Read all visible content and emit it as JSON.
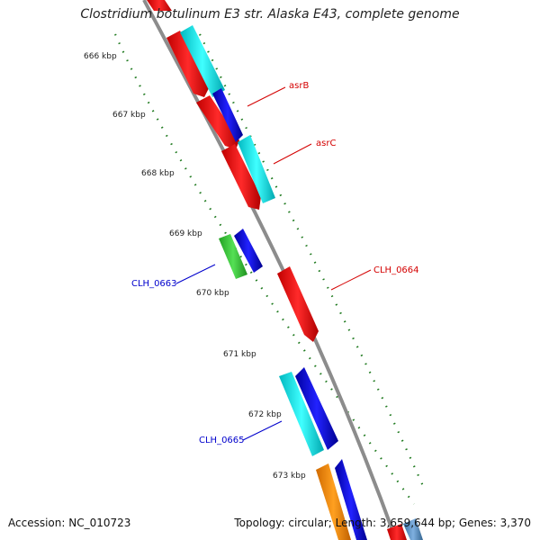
{
  "title": "Clostridium botulinum E3 str. Alaska E43, complete genome",
  "accession": "Accession: NC_010723",
  "topology": "Topology: circular; Length: 3,659,644 bp; Genes: 3,370",
  "kbp_labels": [
    "666 kbp",
    "667 kbp",
    "668 kbp",
    "669 kbp",
    "670 kbp",
    "671 kbp",
    "672 kbp",
    "673 kbp"
  ],
  "gene_labels": [
    {
      "text": "asrB",
      "color": "#d40000"
    },
    {
      "text": "asrC",
      "color": "#d40000"
    },
    {
      "text": "CLH_0664",
      "color": "#d40000"
    },
    {
      "text": "CLH_0663",
      "color": "#0000cc"
    },
    {
      "text": "CLH_0665",
      "color": "#0000cc"
    }
  ],
  "colors": {
    "backbone": "#8c8c8c",
    "tick": "#1f7a1f",
    "red": "#ff1010",
    "cyan": "#00e5ee",
    "blue": "#0000ee",
    "green": "#33cc33",
    "orange": "#ff8c00",
    "steelblue": "#5a8fc0"
  }
}
